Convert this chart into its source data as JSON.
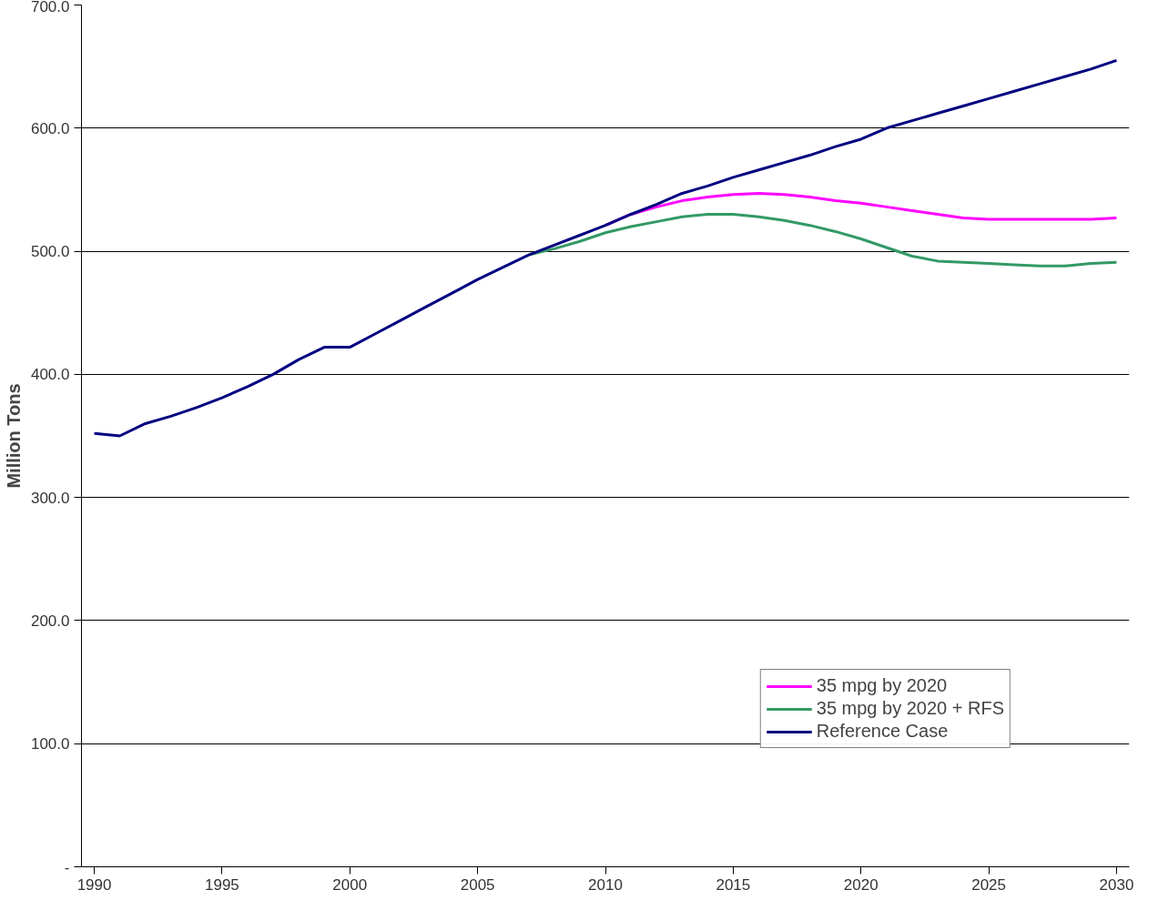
{
  "chart_data": {
    "type": "line",
    "ylabel": "Million Tons",
    "xlim": [
      1989.5,
      2030.5
    ],
    "xticks": [
      1990,
      1995,
      2000,
      2005,
      2010,
      2015,
      2020,
      2025,
      2030
    ],
    "ylim": [
      0,
      700
    ],
    "yticks": [
      {
        "value": 0,
        "label": "-"
      },
      {
        "value": 100,
        "label": "100.0"
      },
      {
        "value": 200,
        "label": "200.0"
      },
      {
        "value": 300,
        "label": "300.0"
      },
      {
        "value": 400,
        "label": "400.0"
      },
      {
        "value": 500,
        "label": "500.0"
      },
      {
        "value": 600,
        "label": "600.0"
      },
      {
        "value": 700,
        "label": "700.0"
      }
    ],
    "grid": "y",
    "legend": "bottom right",
    "line_style": "solid",
    "marker": "none",
    "series": [
      {
        "name": "35 mpg by 2020",
        "color": "#ff00ff",
        "x": [
          2010,
          2011,
          2012,
          2013,
          2014,
          2015,
          2016,
          2017,
          2018,
          2019,
          2020,
          2021,
          2022,
          2023,
          2024,
          2025,
          2026,
          2027,
          2028,
          2029,
          2030
        ],
        "values": [
          521,
          530,
          536,
          541,
          544,
          546,
          547,
          546,
          544,
          541,
          539,
          536,
          533,
          530,
          527,
          526,
          526,
          526,
          526,
          526,
          527
        ]
      },
      {
        "name": "35 mpg by 2020 + RFS",
        "color": "#339966",
        "x": [
          2007,
          2008,
          2009,
          2010,
          2011,
          2012,
          2013,
          2014,
          2015,
          2016,
          2017,
          2018,
          2019,
          2020,
          2021,
          2022,
          2023,
          2024,
          2025,
          2026,
          2027,
          2028,
          2029,
          2030
        ],
        "values": [
          497,
          502,
          508,
          515,
          520,
          524,
          528,
          530,
          530,
          528,
          525,
          521,
          516,
          510,
          503,
          496,
          492,
          491,
          490,
          489,
          488,
          488,
          490,
          491
        ]
      },
      {
        "name": "Reference Case",
        "color": "#000080",
        "x": [
          1990,
          1991,
          1992,
          1993,
          1994,
          1995,
          1996,
          1997,
          1998,
          1999,
          2000,
          2001,
          2002,
          2003,
          2004,
          2005,
          2006,
          2007,
          2008,
          2009,
          2010,
          2011,
          2012,
          2013,
          2014,
          2015,
          2016,
          2017,
          2018,
          2019,
          2020,
          2021,
          2022,
          2023,
          2024,
          2025,
          2026,
          2027,
          2028,
          2029,
          2030
        ],
        "values": [
          352,
          350,
          360,
          366,
          373,
          381,
          390,
          400,
          412,
          422,
          422,
          433,
          444,
          455,
          466,
          477,
          487,
          497,
          505,
          513,
          521,
          530,
          538,
          547,
          553,
          560,
          566,
          572,
          578,
          585,
          591,
          600,
          606,
          612,
          618,
          624,
          630,
          636,
          642,
          648,
          655
        ]
      }
    ]
  }
}
